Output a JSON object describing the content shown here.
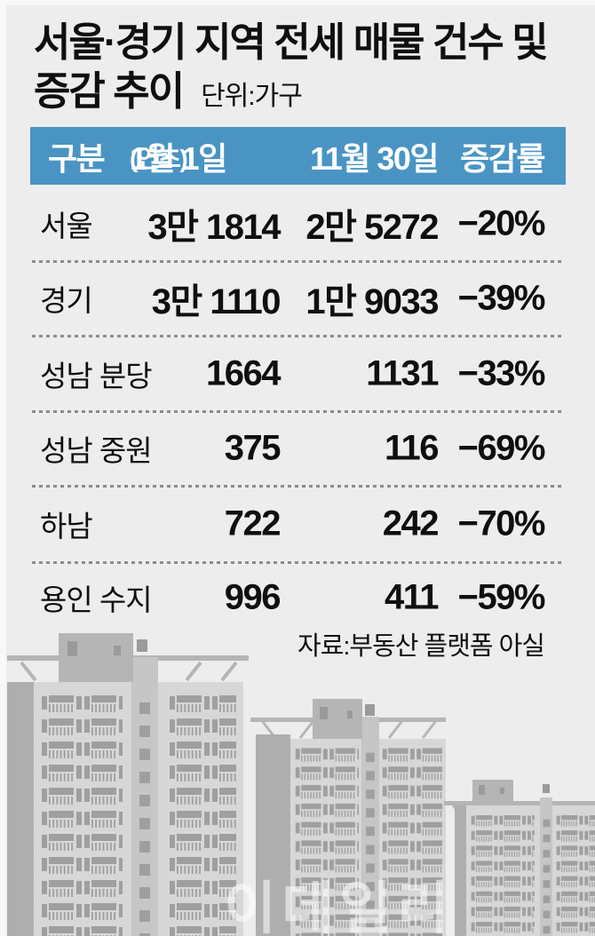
{
  "title": {
    "line1": "서울·경기 지역 전세 매물 건수 및",
    "line2": "증감 추이",
    "unit": "단위:가구"
  },
  "table": {
    "header": {
      "col1": "구분",
      "col2_main": "1월 1일",
      "col2_sub": "(연초)",
      "col3": "11월 30일",
      "col4": "증감률"
    },
    "rows": [
      {
        "label": "서울",
        "jan": "3만 1814",
        "nov": "2만 5272",
        "change": "−20%"
      },
      {
        "label": "경기",
        "jan": "3만 1110",
        "nov": "1만 9033",
        "change": "−39%"
      },
      {
        "label": "성남 분당",
        "jan": "1664",
        "nov": "1131",
        "change": "−33%"
      },
      {
        "label": "성남 중원",
        "jan": "375",
        "nov": "116",
        "change": "−69%"
      },
      {
        "label": "하남",
        "jan": "722",
        "nov": "242",
        "change": "−70%"
      },
      {
        "label": "용인 수지",
        "jan": "996",
        "nov": "411",
        "change": "−59%"
      }
    ]
  },
  "source": "자료:부동산 플랫폼 아실",
  "watermark": "이데일리",
  "colors": {
    "background": "#ededed",
    "header_bg": "#4a94c4",
    "header_text": "#ffffff",
    "text": "#0f0f0f",
    "separator": "#8c8c8c",
    "illustration": {
      "body_light": "#d7d7d7",
      "column_mid": "#c6c6c6",
      "slab_dark": "#aeaeae",
      "roof": "#b5b5b5",
      "window": "#9f9f9f",
      "roof_window": "#9a9a9a"
    }
  },
  "chart_data": {
    "type": "table",
    "title": "서울·경기 지역 전세 매물 건수 및 증감 추이",
    "unit": "단위:가구",
    "columns": [
      "구분",
      "1월 1일(연초)",
      "11월 30일",
      "증감률"
    ],
    "rows": [
      [
        "서울",
        "3만 1814",
        "2만 5272",
        "-20%"
      ],
      [
        "경기",
        "3만 1110",
        "1만 9033",
        "-39%"
      ],
      [
        "성남 분당",
        "1664",
        "1131",
        "-33%"
      ],
      [
        "성남 중원",
        "375",
        "116",
        "-69%"
      ],
      [
        "하남",
        "722",
        "242",
        "-70%"
      ],
      [
        "용인 수지",
        "996",
        "411",
        "-59%"
      ]
    ],
    "numeric": {
      "categories": [
        "서울",
        "경기",
        "성남 분당",
        "성남 중원",
        "하남",
        "용인 수지"
      ],
      "jan_1": [
        31814,
        31110,
        1664,
        375,
        722,
        996
      ],
      "nov_30": [
        25272,
        19033,
        1131,
        116,
        242,
        411
      ],
      "change_pct": [
        -20,
        -39,
        -33,
        -69,
        -70,
        -59
      ]
    },
    "source": "자료:부동산 플랫폼 아실"
  }
}
